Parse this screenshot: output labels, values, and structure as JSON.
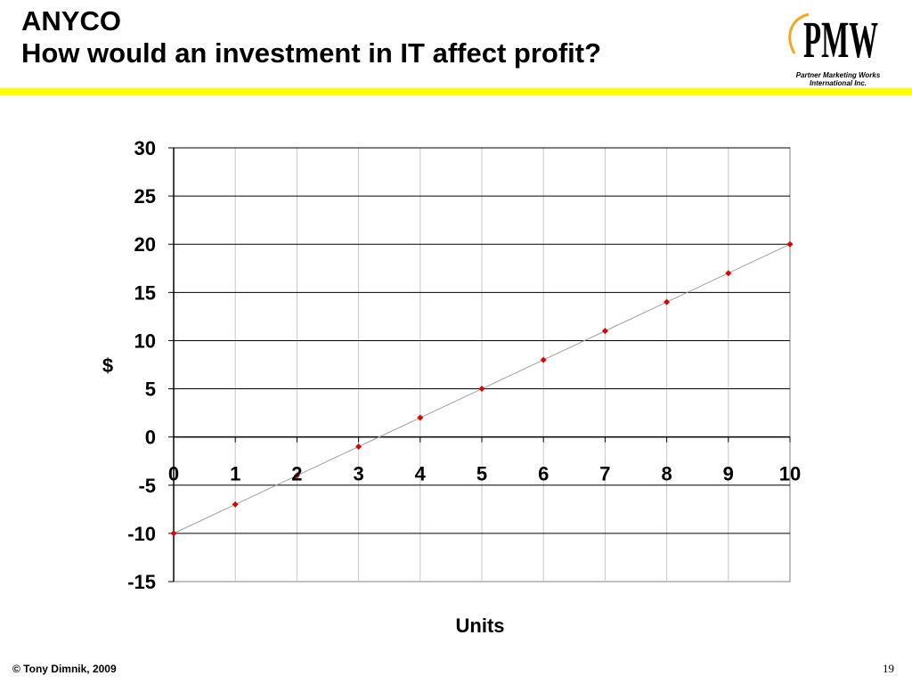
{
  "slide": {
    "title_line1": "ANYCO",
    "title_line2": "How would an investment in IT affect profit?",
    "accent_color": "#ffff00",
    "footer_text": "© Tony Dimnik, 2009",
    "page_number": "19"
  },
  "logo": {
    "mark": "PMW",
    "caption_line1": "Partner Marketing Works",
    "caption_line2": "International Inc.",
    "swirl_color": "#f5a623"
  },
  "chart_data": {
    "type": "line",
    "x": [
      0,
      1,
      2,
      3,
      4,
      5,
      6,
      7,
      8,
      9,
      10
    ],
    "series": [
      {
        "values": [
          -10,
          -7,
          -4,
          -1,
          2,
          5,
          8,
          11,
          14,
          17,
          20
        ],
        "marker_color": "#e00000",
        "line_color": "#a0a0a0"
      }
    ],
    "xlabel": "Units",
    "ylabel": "$",
    "xlim": [
      0,
      10
    ],
    "ylim": [
      -15,
      30
    ],
    "x_ticks": [
      "0",
      "1",
      "2",
      "3",
      "4",
      "5",
      "6",
      "7",
      "8",
      "9",
      "10"
    ],
    "y_ticks": [
      "30",
      "25",
      "20",
      "15",
      "10",
      "5",
      "0",
      "-5",
      "-10",
      "-15"
    ],
    "grid": true,
    "legend": "none"
  }
}
